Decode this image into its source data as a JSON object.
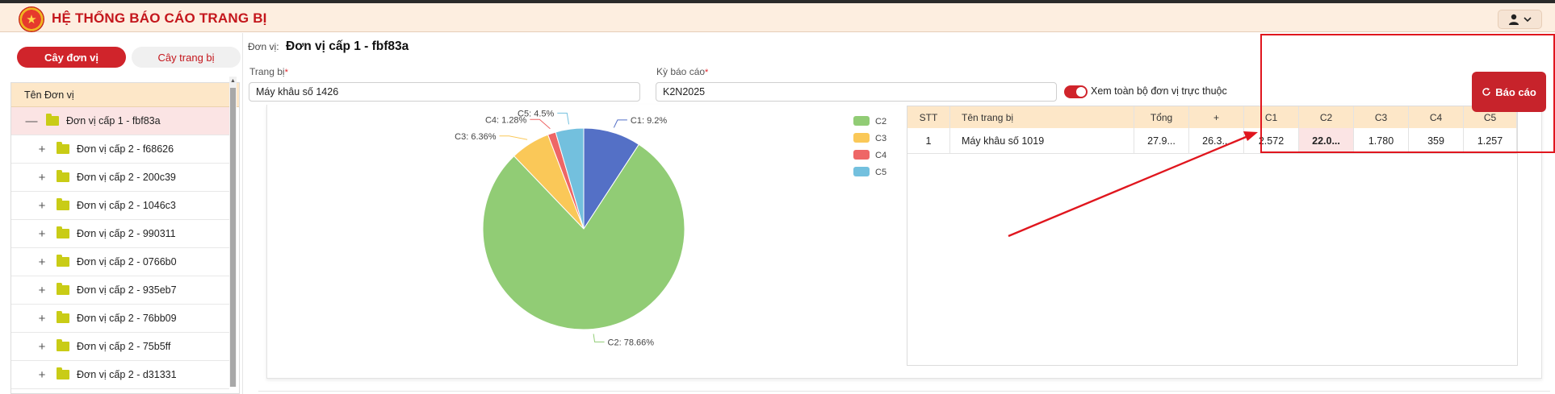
{
  "header": {
    "app_title": "HỆ THỐNG BÁO CÁO TRANG BỊ",
    "user_icon": "user-icon"
  },
  "sidebar": {
    "tabs": [
      {
        "label": "Cây đơn vị",
        "active": true
      },
      {
        "label": "Cây trang bị",
        "active": false
      }
    ],
    "tree_header": "Tên Đơn vị",
    "root": {
      "label": "Đơn vị cấp 1 - fbf83a",
      "toggle": "—"
    },
    "children": [
      "Đơn vị cấp 2 - f68626",
      "Đơn vị cấp 2 - 200c39",
      "Đơn vị cấp 2 - 1046c3",
      "Đơn vị cấp 2 - 990311",
      "Đơn vị cấp 2 - 0766b0",
      "Đơn vị cấp 2 - 935eb7",
      "Đơn vị cấp 2 - 76bb09",
      "Đơn vị cấp 2 - 75b5ff",
      "Đơn vị cấp 2 - d31331"
    ],
    "child_toggle": "+"
  },
  "filters": {
    "unit_label": "Đơn vị:",
    "unit_value": "Đơn vị cấp 1 - fbf83a",
    "equipment_label": "Trang bị",
    "equipment_value": "Máy khâu số 1426",
    "period_label": "Kỳ báo cáo",
    "period_value": "K2N2025",
    "toggle_label": "Xem toàn bộ đơn vị trực thuộc",
    "toggle_on": true,
    "report_button": "Báo cáo",
    "required_mark": "*"
  },
  "chart_data": {
    "type": "pie",
    "slices": [
      {
        "name": "C1",
        "value": 9.2,
        "label": "C1: 9.2%",
        "color": "#5470c6"
      },
      {
        "name": "C2",
        "value": 78.66,
        "label": "C2: 78.66%",
        "color": "#91cc75"
      },
      {
        "name": "C3",
        "value": 6.36,
        "label": "C3: 6.36%",
        "color": "#fac858"
      },
      {
        "name": "C4",
        "value": 1.28,
        "label": "C4: 1.28%",
        "color": "#ee6666"
      },
      {
        "name": "C5",
        "value": 4.5,
        "label": "C5: 4.5%",
        "color": "#73c0de"
      }
    ],
    "legend": [
      "C2",
      "C3",
      "C4",
      "C5"
    ],
    "legend_position": "top-right"
  },
  "table": {
    "columns": [
      "STT",
      "Tên trang bị",
      "Tổng",
      "+",
      "C1",
      "C2",
      "C3",
      "C4",
      "C5"
    ],
    "rows": [
      [
        "1",
        "Máy khâu số 1019",
        "27.9...",
        "26.3...",
        "2.572",
        "22.0...",
        "1.780",
        "359",
        "1.257"
      ]
    ]
  }
}
